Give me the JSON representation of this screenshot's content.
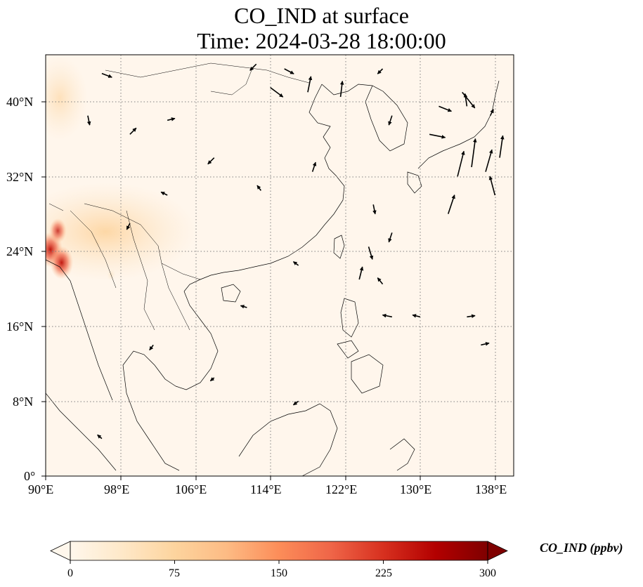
{
  "title": {
    "line1": "CO_IND at surface",
    "line2": "Time: 2024-03-28 18:00:00"
  },
  "axes": {
    "lon_ticks": [
      "90°E",
      "98°E",
      "106°E",
      "114°E",
      "122°E",
      "130°E",
      "138°E"
    ],
    "lat_ticks": [
      "40°N",
      "32°N",
      "24°N",
      "16°N",
      "8°N",
      "0°"
    ]
  },
  "map": {
    "lon_range": [
      90,
      140
    ],
    "lat_range": [
      0,
      45
    ],
    "gridlines": true,
    "field_colormap": "OrRd"
  },
  "colorbar": {
    "label": "CO_IND (ppbv)",
    "ticks": [
      "0",
      "75",
      "150",
      "225",
      "300"
    ],
    "range": [
      0,
      300
    ],
    "extend": "both",
    "colors": [
      "#fff7ec",
      "#fee8c8",
      "#fdd49e",
      "#fdbb84",
      "#fc8d59",
      "#ef6548",
      "#d7301f",
      "#b30000",
      "#7f0000"
    ]
  },
  "chart_data": {
    "type": "heatmap",
    "title": "CO_IND at surface / Time: 2024-03-28 18:00:00",
    "xlabel": "",
    "ylabel": "",
    "xlim": [
      90,
      140
    ],
    "ylim": [
      0,
      45
    ],
    "colorbar_range": [
      0,
      300
    ],
    "hotspots": [
      {
        "lon": 90.5,
        "lat": 24.2,
        "value": 260
      },
      {
        "lon": 91.7,
        "lat": 22.8,
        "value": 240
      },
      {
        "lon": 91.3,
        "lat": 26.2,
        "value": 160
      },
      {
        "lon": 95.5,
        "lat": 25.0,
        "value": 45
      },
      {
        "lon": 97.0,
        "lat": 21.5,
        "value": 35
      }
    ],
    "wind_vectors": [
      {
        "lon": 112.5,
        "lat": 44.0,
        "u": -1.0,
        "v": -1.0
      },
      {
        "lon": 115.5,
        "lat": 43.5,
        "u": 1.5,
        "v": -0.8
      },
      {
        "lon": 114.0,
        "lat": 41.5,
        "u": 2.0,
        "v": -1.5
      },
      {
        "lon": 118.0,
        "lat": 41.0,
        "u": 0.5,
        "v": 2.5
      },
      {
        "lon": 121.5,
        "lat": 40.5,
        "u": 0.3,
        "v": 2.5
      },
      {
        "lon": 126.0,
        "lat": 43.5,
        "u": -0.8,
        "v": -0.8
      },
      {
        "lon": 132.0,
        "lat": 39.5,
        "u": 2.0,
        "v": -0.8
      },
      {
        "lon": 134.5,
        "lat": 41.0,
        "u": 2.0,
        "v": -2.5
      },
      {
        "lon": 135.0,
        "lat": 39.5,
        "u": -0.3,
        "v": 2.0
      },
      {
        "lon": 137.5,
        "lat": 38.5,
        "u": 0.5,
        "v": 1.0
      },
      {
        "lon": 134.0,
        "lat": 32.0,
        "u": 1.0,
        "v": 4.0
      },
      {
        "lon": 135.5,
        "lat": 33.0,
        "u": 0.6,
        "v": 4.5
      },
      {
        "lon": 137.0,
        "lat": 32.5,
        "u": 1.0,
        "v": 3.5
      },
      {
        "lon": 138.0,
        "lat": 30.0,
        "u": -0.8,
        "v": 3.0
      },
      {
        "lon": 133.0,
        "lat": 28.0,
        "u": 1.0,
        "v": 3.0
      },
      {
        "lon": 138.5,
        "lat": 34.0,
        "u": 0.5,
        "v": 3.5
      },
      {
        "lon": 131.0,
        "lat": 36.5,
        "u": 2.5,
        "v": -0.5
      },
      {
        "lon": 127.0,
        "lat": 38.5,
        "u": -0.5,
        "v": -1.5
      },
      {
        "lon": 125.0,
        "lat": 29.0,
        "u": 0.3,
        "v": -1.5
      },
      {
        "lon": 127.0,
        "lat": 26.0,
        "u": -0.5,
        "v": -1.5
      },
      {
        "lon": 124.5,
        "lat": 24.5,
        "u": 0.6,
        "v": -2.0
      },
      {
        "lon": 123.5,
        "lat": 21.0,
        "u": 0.5,
        "v": 2.0
      },
      {
        "lon": 126.0,
        "lat": 20.5,
        "u": -0.8,
        "v": 1.0
      },
      {
        "lon": 127.0,
        "lat": 17.0,
        "u": -1.5,
        "v": 0.3
      },
      {
        "lon": 130.0,
        "lat": 17.0,
        "u": -1.2,
        "v": 0.3
      },
      {
        "lon": 135.0,
        "lat": 17.0,
        "u": 1.3,
        "v": 0.2
      },
      {
        "lon": 136.5,
        "lat": 14.0,
        "u": 1.3,
        "v": 0.3
      },
      {
        "lon": 96.0,
        "lat": 43.0,
        "u": 1.6,
        "v": -0.6
      },
      {
        "lon": 94.5,
        "lat": 38.5,
        "u": 0.3,
        "v": -1.5
      },
      {
        "lon": 99.0,
        "lat": 36.5,
        "u": 1.0,
        "v": 1.0
      },
      {
        "lon": 103.0,
        "lat": 38.0,
        "u": 1.2,
        "v": 0.3
      },
      {
        "lon": 108.0,
        "lat": 34.0,
        "u": -1.0,
        "v": -1.0
      },
      {
        "lon": 118.5,
        "lat": 32.5,
        "u": 0.5,
        "v": 1.5
      },
      {
        "lon": 103.0,
        "lat": 30.0,
        "u": -1.0,
        "v": 0.5
      },
      {
        "lon": 113.0,
        "lat": 30.5,
        "u": -0.6,
        "v": 0.8
      },
      {
        "lon": 99.0,
        "lat": 27.0,
        "u": -0.5,
        "v": -1.0
      },
      {
        "lon": 117.0,
        "lat": 22.5,
        "u": -0.8,
        "v": 0.6
      },
      {
        "lon": 111.5,
        "lat": 18.0,
        "u": -1.0,
        "v": 0.3
      },
      {
        "lon": 101.5,
        "lat": 14.0,
        "u": -0.6,
        "v": -0.8
      },
      {
        "lon": 108.0,
        "lat": 10.5,
        "u": -0.6,
        "v": -0.5
      },
      {
        "lon": 117.0,
        "lat": 8.0,
        "u": -0.8,
        "v": -0.6
      },
      {
        "lon": 96.0,
        "lat": 4.0,
        "u": -0.7,
        "v": 0.6
      }
    ]
  }
}
